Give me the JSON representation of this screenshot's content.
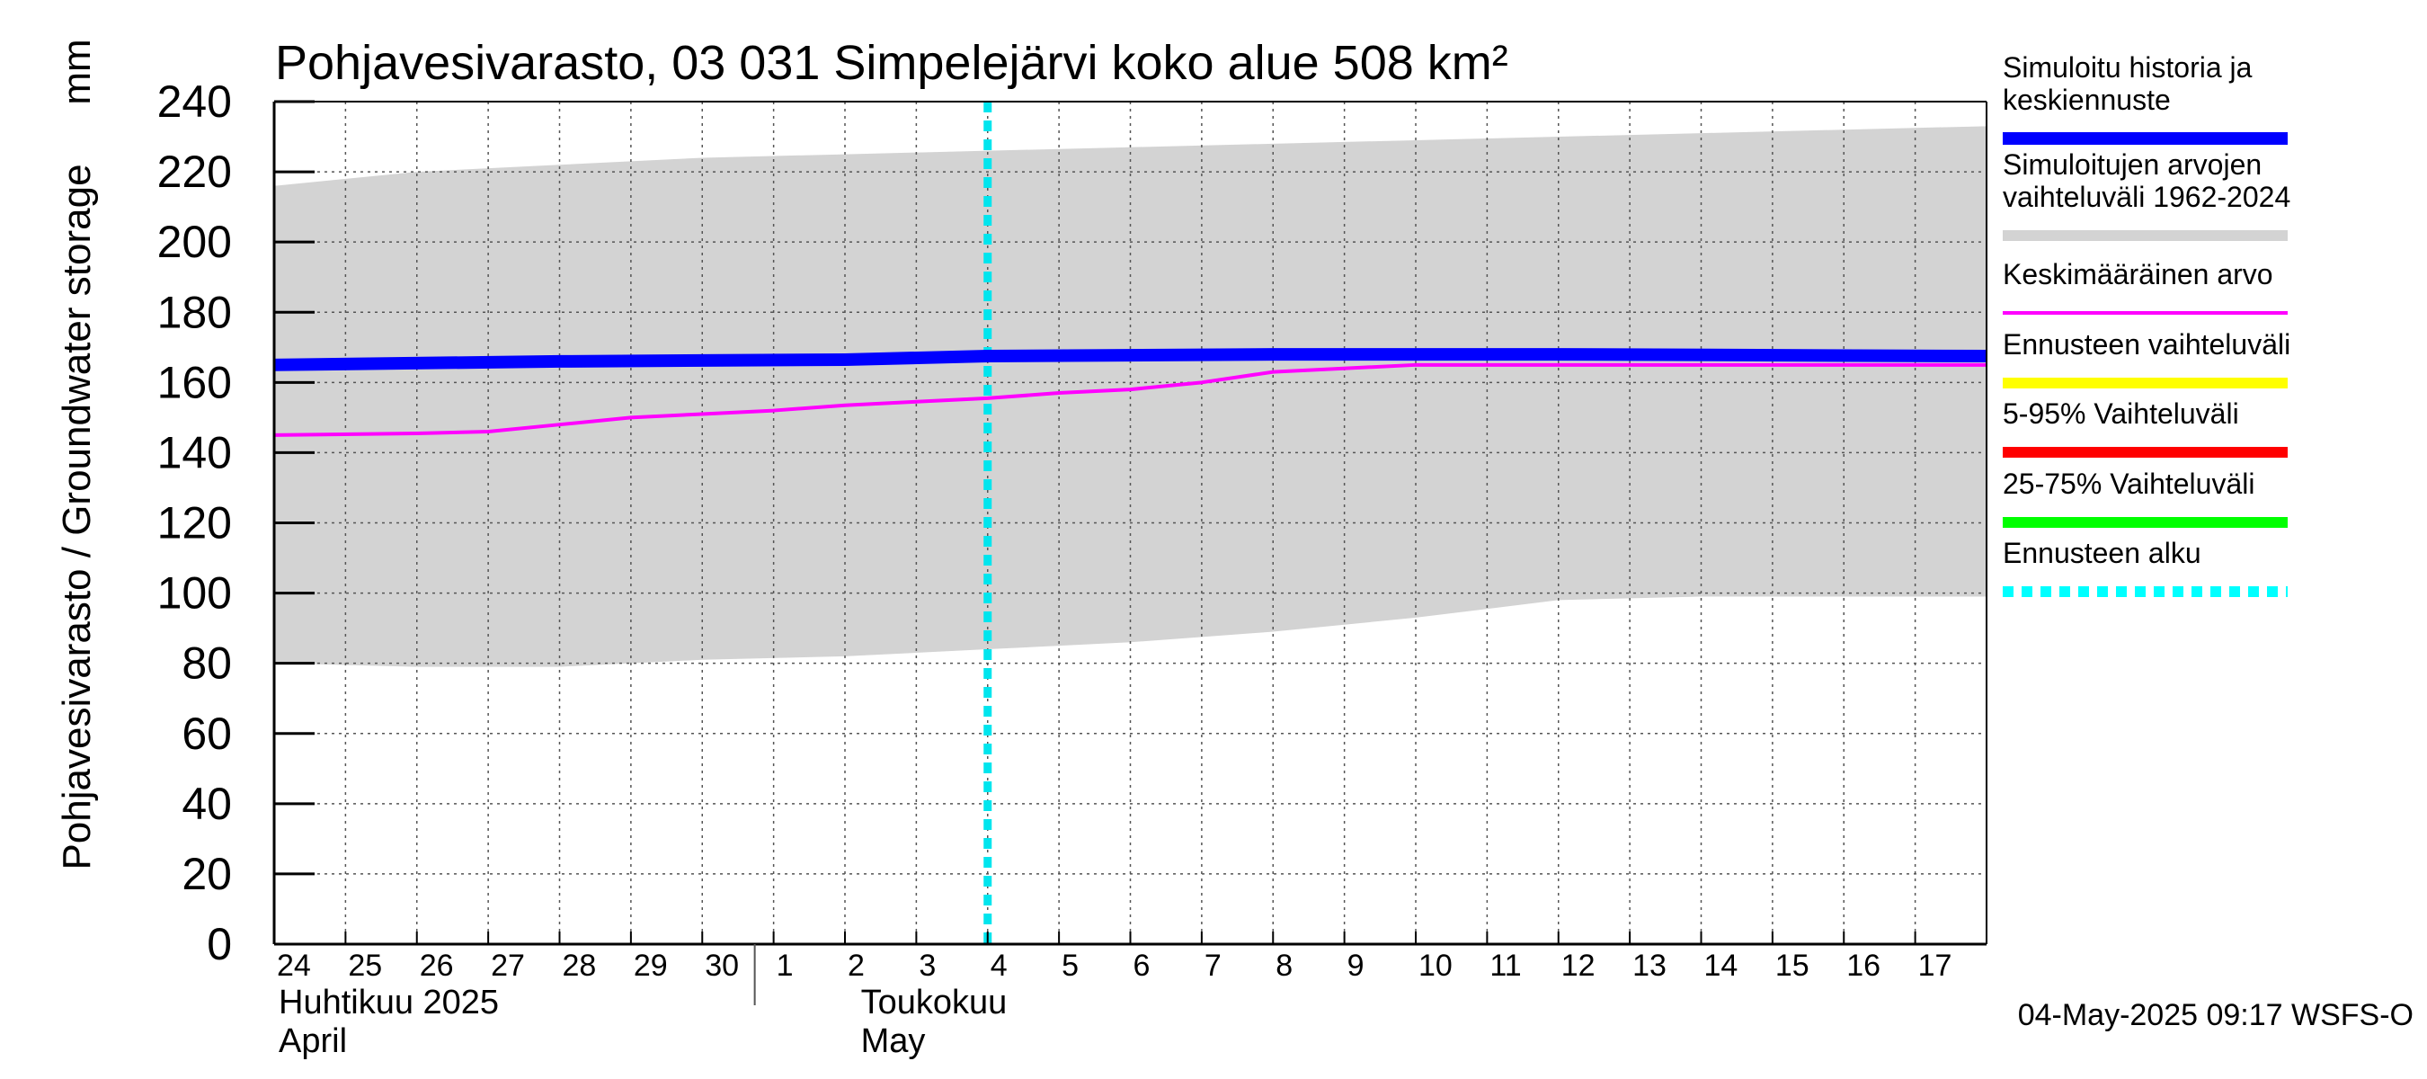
{
  "chart_data": {
    "type": "line",
    "title": "Pohjavesivarasto, 03 031 Simpelejärvi koko alue 508 km²",
    "ylabel": "Pohjavesivarasto / Groundwater storage",
    "yunit": "mm",
    "ylim": [
      0,
      240
    ],
    "yticks": [
      0,
      20,
      40,
      60,
      80,
      100,
      120,
      140,
      160,
      180,
      200,
      220,
      240
    ],
    "grid": true,
    "xlim": [
      0,
      24
    ],
    "day_labels": [
      "24",
      "25",
      "26",
      "27",
      "28",
      "29",
      "30",
      "1",
      "2",
      "3",
      "4",
      "5",
      "6",
      "7",
      "8",
      "9",
      "10",
      "11",
      "12",
      "13",
      "14",
      "15",
      "16",
      "17"
    ],
    "month_labels": [
      {
        "fi": "Huhtikuu  2025",
        "en": "April",
        "start_day_index": 0
      },
      {
        "fi": "Toukokuu",
        "en": "May",
        "start_day_index": 7
      }
    ],
    "forecast_start_day": 10,
    "series": [
      {
        "name": "Simuloitujen arvojen vaihteluväli 1962-2024",
        "kind": "band",
        "color": "#d3d3d3",
        "x": [
          0,
          2,
          4,
          6,
          8,
          10,
          12,
          14,
          16,
          18,
          20,
          22,
          24
        ],
        "lower": [
          80,
          79,
          79,
          81,
          82,
          84,
          86,
          89,
          93,
          98,
          99,
          99,
          99
        ],
        "upper": [
          216,
          220,
          222,
          224,
          225,
          226,
          227,
          228,
          229,
          230,
          231,
          232,
          233
        ]
      },
      {
        "name": "Simuloitu historia ja keskiennuste",
        "kind": "line",
        "color": "#0000ff",
        "x": [
          0,
          4,
          8,
          10,
          14,
          18,
          24
        ],
        "values": [
          165,
          166,
          166.5,
          167.5,
          168,
          168,
          167.5
        ]
      },
      {
        "name": "Keskimääräinen arvo",
        "kind": "line",
        "color": "#ff00ff",
        "x": [
          0,
          2,
          3,
          4,
          5,
          6,
          7,
          8,
          9,
          10,
          11,
          12,
          13,
          14,
          16,
          18,
          20,
          24
        ],
        "values": [
          145,
          145.5,
          146,
          148,
          150,
          151,
          152,
          153.5,
          154.5,
          155.5,
          157,
          158,
          160,
          163,
          165,
          165,
          165,
          165
        ]
      }
    ],
    "legend": {
      "placement": "right",
      "items": [
        {
          "label_lines": [
            "Simuloitu historia ja",
            "keskiennuste"
          ],
          "color": "#0000ff",
          "style": "thick"
        },
        {
          "label_lines": [
            "Simuloitujen arvojen",
            "vaihteluväli 1962-2024"
          ],
          "color": "#d3d3d3",
          "style": "solid"
        },
        {
          "label_lines": [
            "Keskimääräinen arvo"
          ],
          "color": "#ff00ff",
          "style": "thin"
        },
        {
          "label_lines": [
            "Ennusteen vaihteluväli"
          ],
          "color": "#ffff00",
          "style": "solid"
        },
        {
          "label_lines": [
            "5-95% Vaihteluväli"
          ],
          "color": "#ff0000",
          "style": "solid"
        },
        {
          "label_lines": [
            "25-75% Vaihteluväli"
          ],
          "color": "#00ff00",
          "style": "solid"
        },
        {
          "label_lines": [
            "Ennusteen alku"
          ],
          "color": "#00ffff",
          "style": "dotted"
        }
      ]
    },
    "footer": "04-May-2025 09:17 WSFS-O"
  }
}
